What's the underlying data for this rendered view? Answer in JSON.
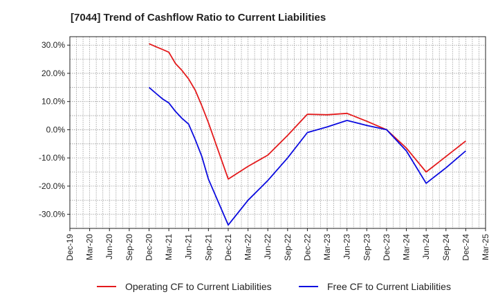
{
  "chart_data": {
    "type": "line",
    "title": "[7044]  Trend of Cashflow Ratio to Current Liabilities",
    "xlabel": "",
    "ylabel": "",
    "categories": [
      "Dec-19",
      "Mar-20",
      "Jun-20",
      "Sep-20",
      "Dec-20",
      "Mar-21",
      "Jun-21",
      "Sep-21",
      "Dec-21",
      "Mar-22",
      "Jun-22",
      "Sep-22",
      "Dec-22",
      "Mar-23",
      "Jun-23",
      "Sep-23",
      "Dec-23",
      "Mar-24",
      "Jun-24",
      "Sep-24",
      "Dec-24",
      "Mar-25"
    ],
    "yticks": [
      30,
      20,
      10,
      0,
      -10,
      -20,
      -30
    ],
    "ytick_labels": [
      "30.0%",
      "20.0%",
      "10.0%",
      "0.0%",
      "-10.0%",
      "-20.0%",
      "-30.0%"
    ],
    "ylim": [
      -35,
      33
    ],
    "grid": true,
    "legend_position": "bottom",
    "series": [
      {
        "name": "Operating CF to Current Liabilities",
        "color": "#e41a1c",
        "points": [
          {
            "x": "Dec-20",
            "y": 30.5
          },
          {
            "x": "Jan-21",
            "y": 29.5
          },
          {
            "x": "Feb-21",
            "y": 28.5
          },
          {
            "x": "Mar-21",
            "y": 27.5
          },
          {
            "x": "Apr-21",
            "y": 23.5
          },
          {
            "x": "May-21",
            "y": 21.0
          },
          {
            "x": "Jun-21",
            "y": 18.0
          },
          {
            "x": "Jul-21",
            "y": 14.0
          },
          {
            "x": "Aug-21",
            "y": 8.5
          },
          {
            "x": "Sep-21",
            "y": 2.5
          },
          {
            "x": "Dec-21",
            "y": -17.5
          },
          {
            "x": "Mar-22",
            "y": -13.0
          },
          {
            "x": "Jun-22",
            "y": -9.0
          },
          {
            "x": "Sep-22",
            "y": -2.0
          },
          {
            "x": "Dec-22",
            "y": 5.5
          },
          {
            "x": "Mar-23",
            "y": 5.3
          },
          {
            "x": "Jun-23",
            "y": 5.8
          },
          {
            "x": "Sep-23",
            "y": 3.0
          },
          {
            "x": "Dec-23",
            "y": 0.0
          },
          {
            "x": "Mar-24",
            "y": -6.5
          },
          {
            "x": "Jun-24",
            "y": -15.0
          },
          {
            "x": "Sep-24",
            "y": -9.5
          },
          {
            "x": "Dec-24",
            "y": -4.0
          }
        ]
      },
      {
        "name": "Free CF to Current Liabilities",
        "color": "#0a0adf",
        "points": [
          {
            "x": "Dec-20",
            "y": 15.0
          },
          {
            "x": "Jan-21",
            "y": 13.0
          },
          {
            "x": "Feb-21",
            "y": 11.0
          },
          {
            "x": "Mar-21",
            "y": 9.5
          },
          {
            "x": "Apr-21",
            "y": 6.5
          },
          {
            "x": "May-21",
            "y": 4.0
          },
          {
            "x": "Jun-21",
            "y": 2.0
          },
          {
            "x": "Jul-21",
            "y": -3.5
          },
          {
            "x": "Aug-21",
            "y": -9.5
          },
          {
            "x": "Sep-21",
            "y": -17.5
          },
          {
            "x": "Dec-21",
            "y": -33.8
          },
          {
            "x": "Mar-22",
            "y": -25.0
          },
          {
            "x": "Jun-22",
            "y": -18.0
          },
          {
            "x": "Sep-22",
            "y": -10.0
          },
          {
            "x": "Dec-22",
            "y": -1.0
          },
          {
            "x": "Mar-23",
            "y": 1.0
          },
          {
            "x": "Jun-23",
            "y": 3.3
          },
          {
            "x": "Sep-23",
            "y": 1.5
          },
          {
            "x": "Dec-23",
            "y": 0.0
          },
          {
            "x": "Mar-24",
            "y": -7.5
          },
          {
            "x": "Jun-24",
            "y": -19.0
          },
          {
            "x": "Sep-24",
            "y": -13.5
          },
          {
            "x": "Dec-24",
            "y": -7.5
          }
        ]
      }
    ]
  }
}
